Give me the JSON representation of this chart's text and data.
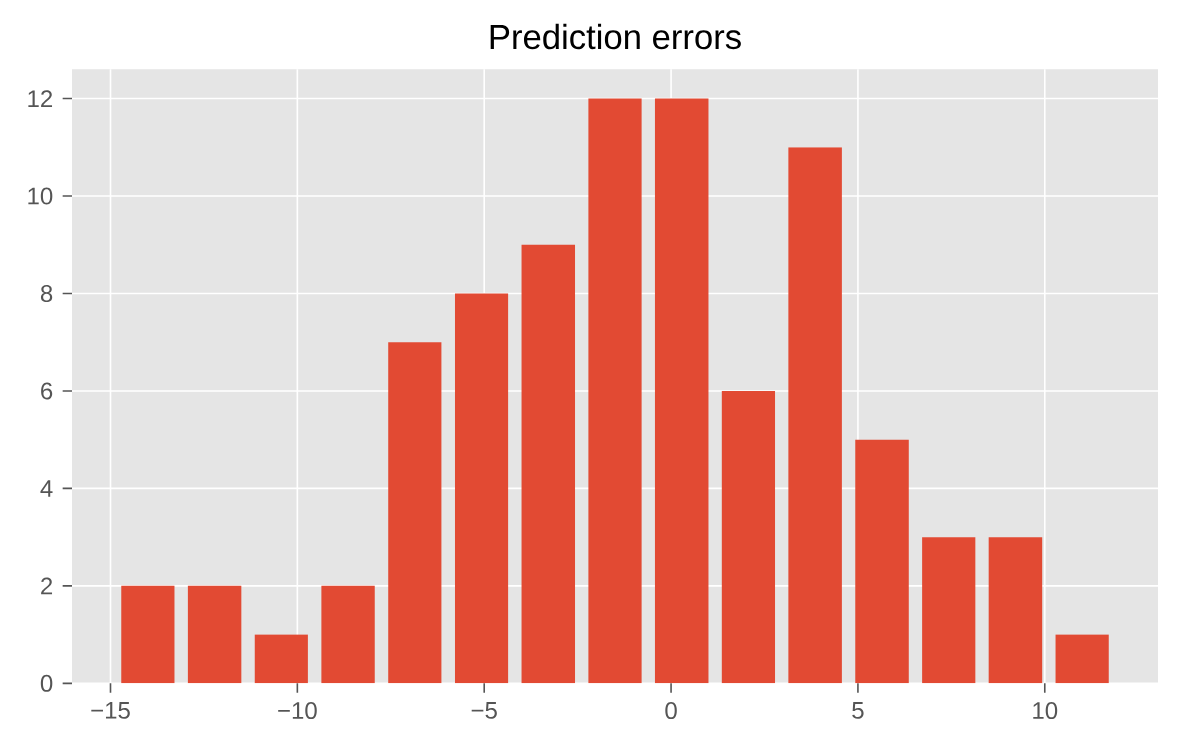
{
  "chart_data": {
    "type": "histogram",
    "title": "Prediction errors",
    "bins": [
      -14.89,
      -13.11,
      -11.32,
      -9.54,
      -7.75,
      -5.96,
      -4.18,
      -2.39,
      -0.61,
      1.18,
      2.96,
      4.75,
      6.54,
      8.32,
      10.11,
      11.89
    ],
    "values": [
      2,
      2,
      1,
      2,
      7,
      8,
      9,
      12,
      12,
      6,
      11,
      5,
      3,
      3,
      1
    ],
    "color": "#e24a33",
    "xlim": [
      -16.03,
      13.03
    ],
    "ylim": [
      0,
      12.6
    ],
    "xticks": [
      {
        "value": -15,
        "label": "−15"
      },
      {
        "value": -10,
        "label": "−10"
      },
      {
        "value": -5,
        "label": "−5"
      },
      0,
      5,
      10
    ],
    "yticks": [
      0,
      2,
      4,
      6,
      8,
      10,
      12
    ],
    "grid": true
  }
}
